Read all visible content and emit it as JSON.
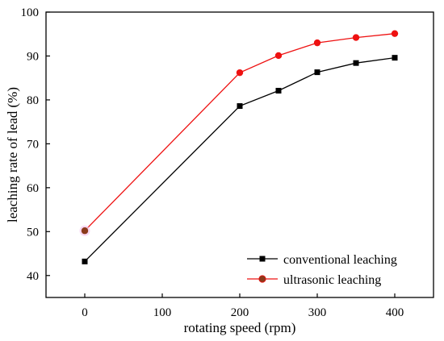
{
  "chart_data": {
    "type": "line",
    "xlabel": "rotating speed (rpm)",
    "ylabel": "leaching rate of lead (%)",
    "xlim": [
      -50,
      450
    ],
    "ylim": [
      35,
      100
    ],
    "xticks": [
      0,
      100,
      200,
      300,
      400
    ],
    "yticks": [
      40,
      50,
      60,
      70,
      80,
      90,
      100
    ],
    "grid": false,
    "legend_position": "bottom-right",
    "series": [
      {
        "name": "conventional leaching",
        "color": "#000000",
        "marker": "square",
        "x": [
          0,
          200,
          250,
          300,
          350,
          400
        ],
        "y": [
          43.2,
          78.6,
          82.1,
          86.3,
          88.4,
          89.6
        ]
      },
      {
        "name": "ultrasonic leaching",
        "color": "#ee1111",
        "marker": "circle",
        "x": [
          0,
          200,
          250,
          300,
          350,
          400
        ],
        "y": [
          50.2,
          86.2,
          90.1,
          93.0,
          94.2,
          95.1
        ]
      }
    ]
  }
}
